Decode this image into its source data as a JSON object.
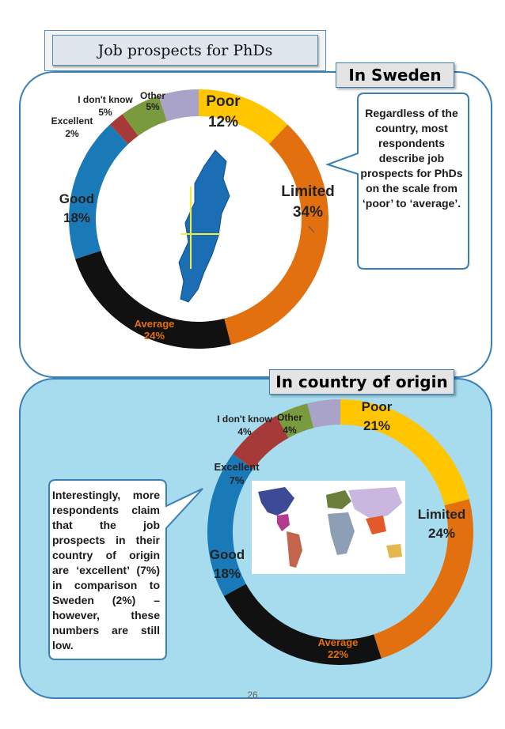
{
  "title": "Job prospects for PhDs",
  "page_number": "26",
  "colors": {
    "Poor": "#ffc600",
    "Limited": "#e3700e",
    "Average": "#111111",
    "Good": "#1a7ab8",
    "Excellent": "#a63a39",
    "I don't know": "#7a9a3e",
    "Other": "#a9a2c9"
  },
  "chart_data": [
    {
      "type": "pie",
      "title": "In Sweden",
      "categories": [
        "Poor",
        "Limited",
        "Average",
        "Good",
        "Excellent",
        "I don't know",
        "Other"
      ],
      "values": [
        12,
        34,
        24,
        18,
        2,
        5,
        5
      ],
      "labels": [
        "12%",
        "34%",
        "24%",
        "18%",
        "2%",
        "5%",
        "5%"
      ]
    },
    {
      "type": "pie",
      "title": "In country of origin",
      "categories": [
        "Poor",
        "Limited",
        "Average",
        "Good",
        "Excellent",
        "I don't know",
        "Other"
      ],
      "values": [
        21,
        24,
        22,
        18,
        7,
        4,
        4
      ],
      "labels": [
        "21%",
        "24%",
        "22%",
        "18%",
        "7%",
        "4%",
        "4%"
      ]
    }
  ],
  "callouts": {
    "sweden": "Regardless of the country, most respondents describe job prospects for PhDs on the scale from ‘poor’ to ‘average’.",
    "origin": "Interestingly, more respondents claim that the job prospects in their country of origin are ‘excellent’ (7%) in comparison to Sweden (2%) – however, these numbers are still low."
  }
}
